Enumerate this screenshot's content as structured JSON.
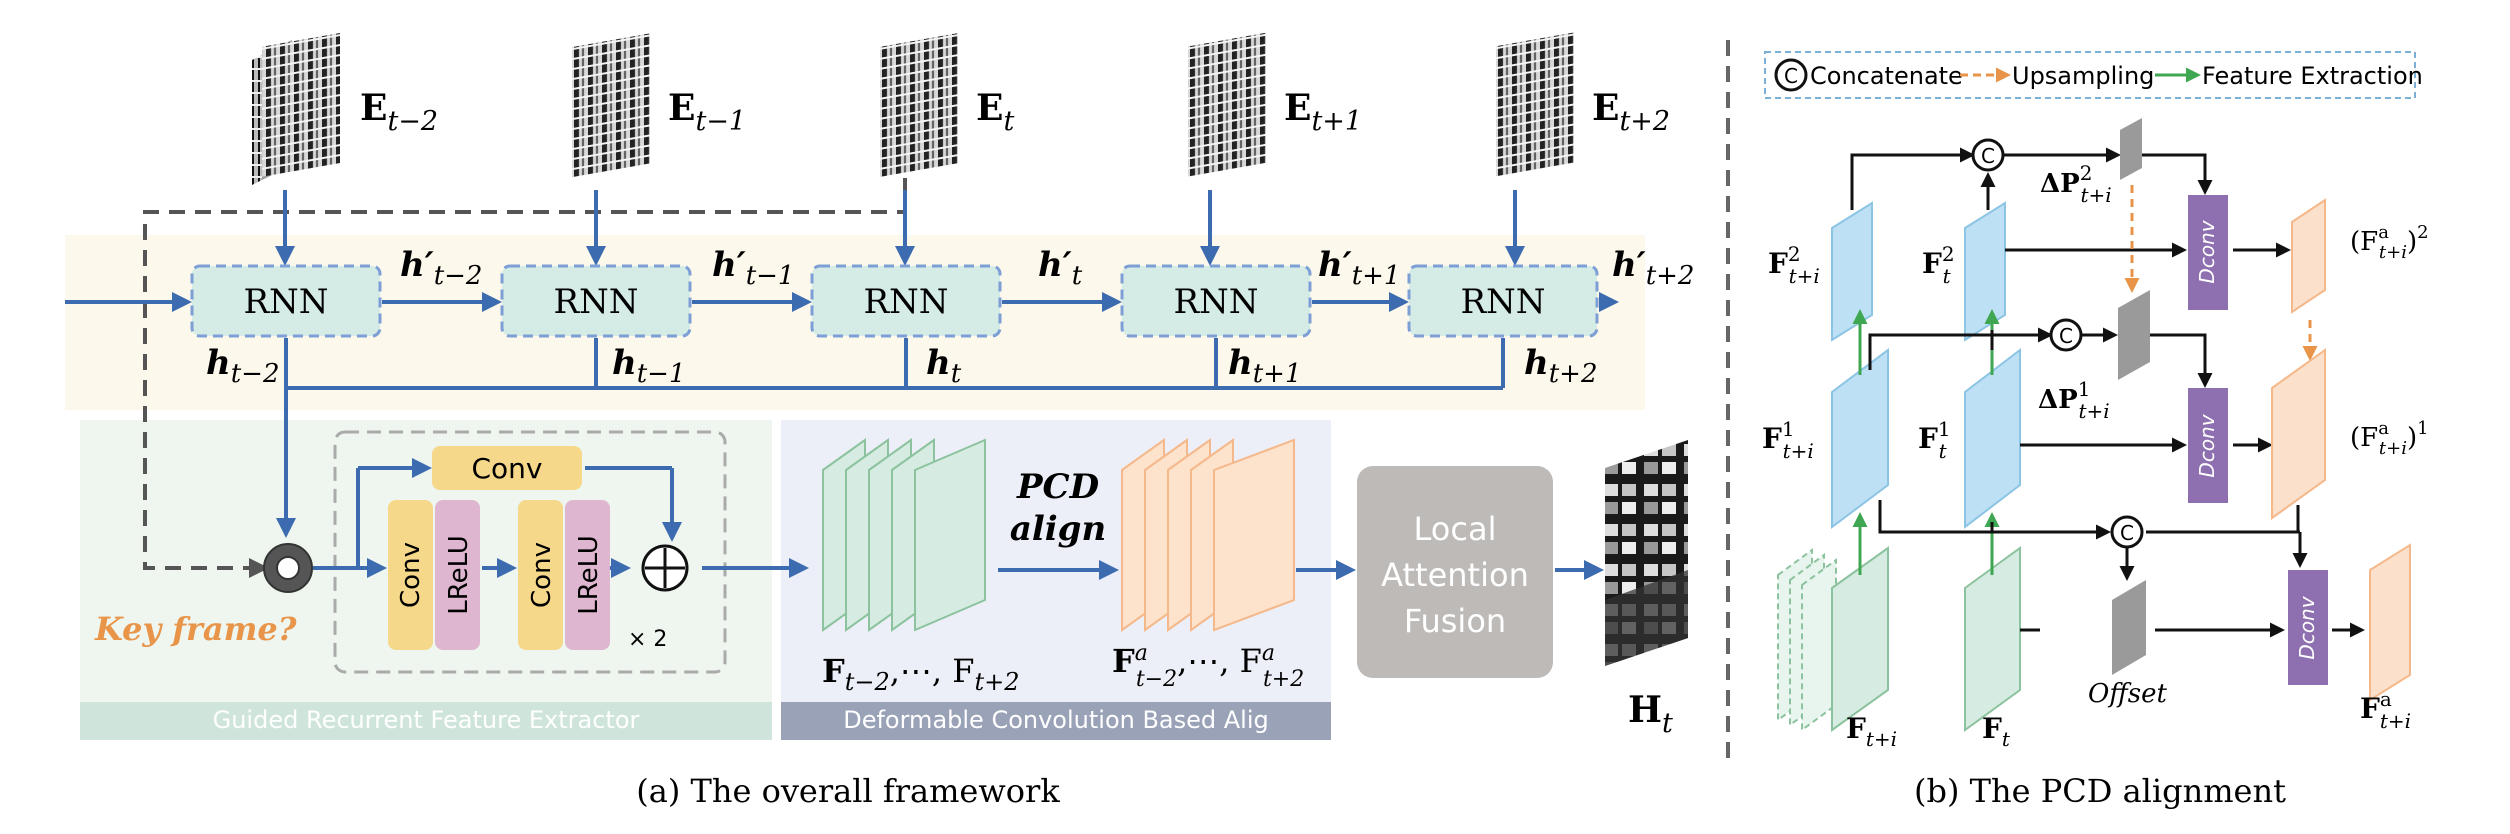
{
  "framework": {
    "caption": "(a) The overall framework",
    "event_frames": [
      {
        "label": "E",
        "sub": "t−2"
      },
      {
        "label": "E",
        "sub": "t−1"
      },
      {
        "label": "E",
        "sub": "t"
      },
      {
        "label": "E",
        "sub": "t+1"
      },
      {
        "label": "E",
        "sub": "t+2"
      }
    ],
    "rnn_blocks": [
      {
        "label": "RNN"
      },
      {
        "label": "RNN"
      },
      {
        "label": "RNN"
      },
      {
        "label": "RNN"
      },
      {
        "label": "RNN"
      }
    ],
    "h_prime_labels": [
      {
        "main": "h′",
        "sub": "t−2"
      },
      {
        "main": "h′",
        "sub": "t−1"
      },
      {
        "main": "h′",
        "sub": "t"
      },
      {
        "main": "h′",
        "sub": "t+1"
      },
      {
        "main": "h′",
        "sub": "t+2"
      }
    ],
    "h_labels": [
      {
        "main": "h",
        "sub": "t−2"
      },
      {
        "main": "h",
        "sub": "t−1"
      },
      {
        "main": "h",
        "sub": "t"
      },
      {
        "main": "h",
        "sub": "t+1"
      },
      {
        "main": "h",
        "sub": "t+2"
      }
    ],
    "key_frame": "Key frame?",
    "conv_top": "Conv",
    "conv_left": "Conv",
    "lrelu_left": "LReLU",
    "conv_right": "Conv",
    "lrelu_right": "LReLU",
    "times_two": "× 2",
    "extractor_label": "Guided Recurrent Feature Extractor",
    "alignment_label": "Deformable Convolution Based Alig",
    "features_label": {
      "main": "F",
      "sub1": "t−2",
      "mid": ",⋯, F",
      "sub2": "t+2"
    },
    "aligned_label": {
      "main": "F",
      "sup": "a",
      "sub1": "t−2",
      "mid": ",⋯, F",
      "sup2": "a",
      "sub2": "t+2"
    },
    "pcd_line1": "PCD",
    "pcd_line2": "align",
    "fusion_lines": [
      "Local",
      "Attention",
      "Fusion"
    ],
    "output_label": {
      "main": "H",
      "sub": "t"
    }
  },
  "pcd": {
    "caption": "(b) The PCD alignment",
    "legend": {
      "concat_symbol": "C",
      "concat": "Concatenate",
      "upsampling": "Upsampling",
      "feature_extraction": "Feature Extraction"
    },
    "f2_ti": {
      "main": "F",
      "sup": "2",
      "sub": "t+i"
    },
    "f2_t": {
      "main": "F",
      "sup": "2",
      "sub": "t"
    },
    "f1_ti": {
      "main": "F",
      "sup": "1",
      "sub": "t+i"
    },
    "f1_t": {
      "main": "F",
      "sup": "1",
      "sub": "t"
    },
    "f_ti": {
      "main": "F",
      "sub": "t+i"
    },
    "f_t": {
      "main": "F",
      "sub": "t"
    },
    "dp2": {
      "main": "ΔP",
      "sup": "2",
      "sub": "t+i"
    },
    "dp1": {
      "main": "ΔP",
      "sup": "1",
      "sub": "t+i"
    },
    "offset": "Offset",
    "dconv": "Dconv",
    "fa2": {
      "main": "(F",
      "sup": "a",
      "sub": "t+i",
      "tail": ")",
      "exp": "2"
    },
    "fa1": {
      "main": "(F",
      "sup": "a",
      "sub": "t+i",
      "tail": ")",
      "exp": "1"
    },
    "fa": {
      "main": "F",
      "sup": "a",
      "sub": "t+i"
    }
  },
  "colors": {
    "arrow_blue": "#3c6bb0",
    "rnn_fill": "#d5ebe6",
    "rnn_border": "#7d9fd6",
    "conv_fill": "#f5d88a",
    "lrelu_fill": "#dfb6cf",
    "green_panel": "#eef6ef",
    "blue_panel": "#eceff7",
    "yellow_band": "#fdf8ec",
    "extractor_bar": "#cfe5db",
    "align_bar": "#9aa2b8",
    "fusion_fill": "#bdbab8",
    "feature_green": "#d6ece2",
    "feature_orange": "#fde2cc",
    "pcd_blue": "#bde0f4",
    "pcd_orange": "#fbe0cb",
    "pcd_green": "#d6ece2",
    "dconv_fill": "#8e6fb0",
    "offset_fill": "#9a9a9a",
    "upsample": "#e8954a",
    "extract_green": "#3fa651"
  }
}
